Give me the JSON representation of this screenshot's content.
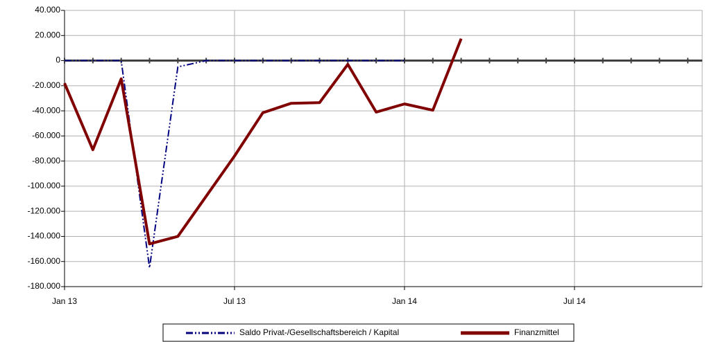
{
  "chart_data": {
    "type": "line",
    "categories": [
      "Jan 13",
      null,
      null,
      null,
      null,
      null,
      "Jul 13",
      null,
      null,
      null,
      null,
      null,
      "Jan 14",
      null,
      null,
      null,
      null,
      null,
      "Jul 14",
      null,
      null,
      null,
      null
    ],
    "series": [
      {
        "name": "Saldo Privat-/Gesellschaftsbereich / Kapital",
        "color": "#000080",
        "dash": "dashdotdot",
        "values": [
          0,
          0,
          0,
          -165000,
          -5000,
          0,
          0,
          0,
          0,
          0,
          0,
          0,
          0,
          null,
          null,
          null,
          null,
          null,
          null,
          null,
          null,
          null,
          null
        ]
      },
      {
        "name": "Finanzmittel",
        "color": "#800000",
        "dash": "solid",
        "values": [
          -18000,
          -71000,
          -14500,
          -146000,
          -140000,
          -108000,
          -76000,
          -41500,
          -34000,
          -33500,
          -3000,
          -41000,
          -34500,
          -39500,
          17500,
          null,
          null,
          null,
          null,
          null,
          null,
          null,
          null
        ]
      }
    ],
    "ylim": [
      -180000,
      40000
    ],
    "yticks": [
      {
        "value": -180000,
        "label": "-180.000"
      },
      {
        "value": -160000,
        "label": "-160.000"
      },
      {
        "value": -140000,
        "label": "-140.000"
      },
      {
        "value": -120000,
        "label": "-120.000"
      },
      {
        "value": -100000,
        "label": "-100.000"
      },
      {
        "value": -80000,
        "label": "-80.000"
      },
      {
        "value": -60000,
        "label": "-60.000"
      },
      {
        "value": -40000,
        "label": "-40.000"
      },
      {
        "value": -20000,
        "label": "-20.000"
      },
      0,
      {
        "value": 20000,
        "label": "20.000"
      },
      {
        "value": 40000,
        "label": "40.000"
      }
    ],
    "grid": true,
    "legend": "bottom"
  }
}
